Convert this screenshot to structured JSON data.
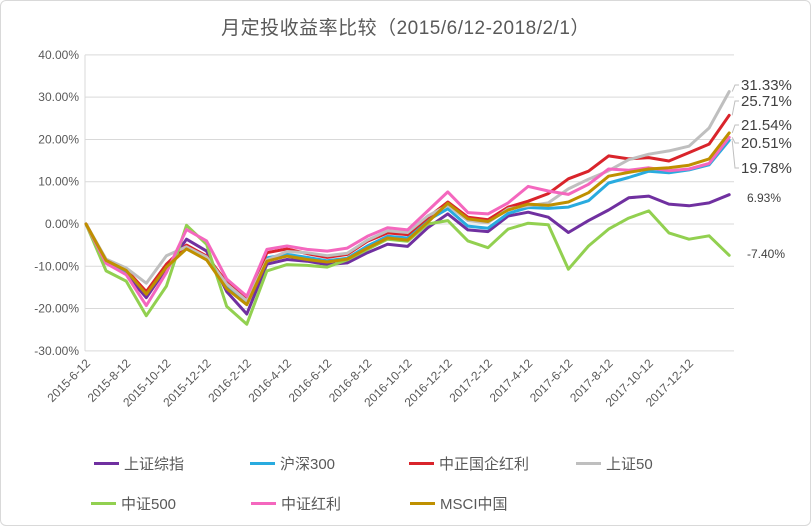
{
  "title": "月定投收益率比较（2015/6/12-2018/2/1）",
  "chart_data": {
    "type": "line",
    "x": [
      "2015-6-12",
      "2015-7-12",
      "2015-8-12",
      "2015-9-12",
      "2015-10-12",
      "2015-11-12",
      "2015-12-12",
      "2016-1-12",
      "2016-2-12",
      "2016-3-12",
      "2016-4-12",
      "2016-5-12",
      "2016-6-12",
      "2016-7-12",
      "2016-8-12",
      "2016-9-12",
      "2016-10-12",
      "2016-11-12",
      "2016-12-12",
      "2017-1-12",
      "2017-2-12",
      "2017-3-12",
      "2017-4-12",
      "2017-5-12",
      "2017-6-12",
      "2017-7-12",
      "2017-8-12",
      "2017-9-12",
      "2017-10-12",
      "2017-11-12",
      "2017-12-12",
      "2018-1-12",
      "2018-2-1"
    ],
    "x_axis_tick_labels": [
      "2015-6-12",
      "2015-8-12",
      "2015-10-12",
      "2015-12-12",
      "2016-2-12",
      "2016-4-12",
      "2016-6-12",
      "2016-8-12",
      "2016-10-12",
      "2016-12-12",
      "2017-2-12",
      "2017-4-12",
      "2017-6-12",
      "2017-8-12",
      "2017-10-12",
      "2017-12-12"
    ],
    "y_ticks": [
      {
        "label": "40.00%",
        "value": 40
      },
      {
        "label": "30.00%",
        "value": 30
      },
      {
        "label": "20.00%",
        "value": 20
      },
      {
        "label": "10.00%",
        "value": 10
      },
      {
        "label": "0.00%",
        "value": 0
      },
      {
        "label": "-10.00%",
        "value": -10
      },
      {
        "label": "-20.00%",
        "value": -20
      },
      {
        "label": "-30.00%",
        "value": -30
      }
    ],
    "ylim": [
      -30,
      40
    ],
    "grid": true,
    "legend_position": "bottom",
    "series": [
      {
        "name": "上证综指",
        "color": "#7030A0",
        "end_label": "6.93%",
        "end_label_size": "small",
        "values": [
          0,
          -9.0,
          -11.9,
          -17.4,
          -10.5,
          -3.6,
          -6.4,
          -16.0,
          -21.3,
          -9.5,
          -8.4,
          -8.8,
          -9.6,
          -9.2,
          -6.8,
          -4.8,
          -5.3,
          -0.9,
          2.4,
          -1.4,
          -1.8,
          1.9,
          2.8,
          1.6,
          -2.0,
          0.8,
          3.3,
          6.2,
          6.6,
          4.7,
          4.3,
          5.0,
          6.93
        ]
      },
      {
        "name": "沪深300",
        "color": "#29ABDF",
        "end_label": "19.78%",
        "end_label_size": "big",
        "values": [
          0,
          -8.8,
          -11.2,
          -16.3,
          -10.0,
          -5.7,
          -8.2,
          -14.8,
          -18.5,
          -8.0,
          -7.2,
          -7.9,
          -8.7,
          -8.1,
          -5.2,
          -2.9,
          -3.3,
          0.9,
          3.6,
          -0.5,
          -1.0,
          2.5,
          3.9,
          3.7,
          4.0,
          5.5,
          9.7,
          11.0,
          12.5,
          12.1,
          12.8,
          14.0,
          19.78
        ]
      },
      {
        "name": "中正国企红利",
        "color": "#D9242B",
        "end_label": "25.71%",
        "end_label_size": "big",
        "values": [
          0,
          -8.5,
          -10.8,
          -16.0,
          -9.5,
          -5.0,
          -7.6,
          -13.8,
          -17.8,
          -6.8,
          -5.9,
          -7.0,
          -7.9,
          -7.2,
          -4.1,
          -2.1,
          -2.5,
          1.5,
          5.2,
          1.6,
          1.0,
          4.0,
          5.4,
          7.2,
          10.7,
          12.5,
          16.1,
          15.4,
          15.7,
          14.9,
          16.9,
          18.9,
          25.71
        ]
      },
      {
        "name": "上证50",
        "color": "#BFBFBF",
        "end_label": "31.33%",
        "end_label_size": "big",
        "values": [
          0,
          -8.3,
          -10.4,
          -14.0,
          -7.5,
          -5.4,
          -7.8,
          -14.2,
          -18.2,
          -8.5,
          -6.5,
          -6.8,
          -7.5,
          -6.9,
          -3.8,
          -1.6,
          -2.0,
          1.9,
          4.4,
          0.8,
          0.3,
          3.6,
          4.3,
          5.0,
          8.3,
          10.6,
          12.6,
          15.2,
          16.5,
          17.3,
          18.4,
          22.7,
          31.33
        ]
      },
      {
        "name": "中证500",
        "color": "#92D050",
        "end_label": "-7.40%",
        "end_label_size": "small",
        "values": [
          0,
          -11.1,
          -13.5,
          -21.7,
          -14.7,
          -0.3,
          -4.8,
          -19.5,
          -23.7,
          -11.1,
          -9.6,
          -9.8,
          -10.2,
          -8.5,
          -6.0,
          -3.6,
          -4.1,
          0.0,
          0.8,
          -4.0,
          -5.6,
          -1.2,
          0.2,
          -0.2,
          -10.7,
          -5.2,
          -1.2,
          1.4,
          3.1,
          -2.1,
          -3.6,
          -2.8,
          -7.4
        ]
      },
      {
        "name": "中证红利",
        "color": "#F467BE",
        "end_label": "20.51%",
        "end_label_size": "big",
        "values": [
          0,
          -9.3,
          -12.0,
          -19.3,
          -11.5,
          -1.3,
          -4.0,
          -13.0,
          -17.1,
          -6.0,
          -5.2,
          -6.0,
          -6.4,
          -5.7,
          -2.9,
          -0.9,
          -1.4,
          3.1,
          7.6,
          2.7,
          2.4,
          5.0,
          8.9,
          7.8,
          7.0,
          9.4,
          13.0,
          12.7,
          13.3,
          12.6,
          13.0,
          14.3,
          20.51
        ]
      },
      {
        "name": "MSCI中国",
        "color": "#BF9000",
        "end_label": "21.54%",
        "end_label_size": "big",
        "values": [
          0,
          -8.6,
          -11.0,
          -16.6,
          -10.2,
          -5.9,
          -8.5,
          -15.3,
          -19.1,
          -8.8,
          -7.6,
          -8.4,
          -9.0,
          -8.3,
          -5.7,
          -3.3,
          -3.8,
          0.4,
          4.9,
          1.2,
          0.6,
          3.3,
          4.7,
          4.4,
          5.2,
          7.4,
          11.3,
          12.2,
          13.0,
          13.3,
          13.9,
          15.4,
          21.54
        ]
      }
    ],
    "colors": {
      "grid": "#D9D9D9",
      "axis_text": "#595959",
      "title_text": "#595959",
      "data_label_text": "#404040",
      "leader_line": "#BFBFBF"
    }
  }
}
